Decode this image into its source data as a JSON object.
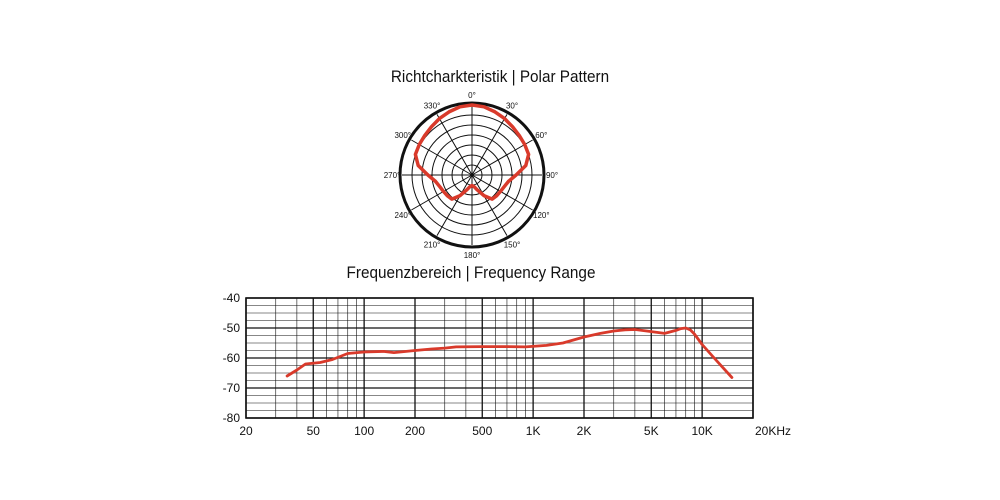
{
  "chart_data": [
    {
      "type": "polar",
      "title": "Richtcharkteristik | Polar Pattern",
      "angle_labels": [
        "0°",
        "30°",
        "60°",
        "90°",
        "120°",
        "150°",
        "180°",
        "210°",
        "240°",
        "270°",
        "300°",
        "330°"
      ],
      "rings": 7,
      "series": [
        {
          "color": "#d93a2b",
          "angles_deg": [
            0,
            10,
            20,
            30,
            40,
            50,
            60,
            70,
            80,
            90,
            100,
            110,
            120,
            130,
            140,
            150,
            160,
            170,
            180,
            190,
            200,
            210,
            220,
            230,
            240,
            250,
            260,
            270,
            280,
            290,
            300,
            310,
            320,
            330,
            340,
            350
          ],
          "radius": [
            1.0,
            0.99,
            0.96,
            0.93,
            0.9,
            0.88,
            0.87,
            0.86,
            0.78,
            0.63,
            0.53,
            0.49,
            0.47,
            0.46,
            0.45,
            0.34,
            0.23,
            0.17,
            0.15,
            0.17,
            0.23,
            0.34,
            0.45,
            0.46,
            0.47,
            0.49,
            0.53,
            0.63,
            0.78,
            0.86,
            0.87,
            0.88,
            0.9,
            0.93,
            0.96,
            0.99
          ]
        }
      ]
    },
    {
      "type": "line",
      "title": "Frequenzbereich | Frequency Range",
      "xscale": "log",
      "xlim": [
        20,
        20000
      ],
      "ylim": [
        -80,
        -40
      ],
      "xticks": [
        {
          "value": 20,
          "label": "20"
        },
        {
          "value": 50,
          "label": "50"
        },
        {
          "value": 100,
          "label": "100"
        },
        {
          "value": 200,
          "label": "200"
        },
        {
          "value": 500,
          "label": "500"
        },
        {
          "value": 1000,
          "label": "1K"
        },
        {
          "value": 2000,
          "label": "2K"
        },
        {
          "value": 5000,
          "label": "5K"
        },
        {
          "value": 10000,
          "label": "10K"
        },
        {
          "value": 20000,
          "label": "20KHz"
        }
      ],
      "yticks": [
        {
          "value": -40,
          "label": "-40"
        },
        {
          "value": -50,
          "label": "-50"
        },
        {
          "value": -60,
          "label": "-60"
        },
        {
          "value": -70,
          "label": "-70"
        },
        {
          "value": -80,
          "label": "-80"
        }
      ],
      "grid": true,
      "series": [
        {
          "color": "#d93a2b",
          "x": [
            35,
            40,
            45,
            55,
            65,
            80,
            100,
            130,
            150,
            200,
            250,
            300,
            350,
            500,
            700,
            900,
            1200,
            1500,
            2000,
            2500,
            3000,
            3500,
            4000,
            5000,
            6000,
            7000,
            7500,
            8000,
            8500,
            9000,
            10000,
            12000,
            15000
          ],
          "y": [
            -66,
            -64,
            -62,
            -61.5,
            -60.5,
            -58.5,
            -58,
            -57.8,
            -58.2,
            -57.5,
            -57,
            -56.7,
            -56.3,
            -56.2,
            -56.2,
            -56.3,
            -55.8,
            -55,
            -53,
            -51.8,
            -51,
            -50.6,
            -50.5,
            -51.2,
            -51.8,
            -50.8,
            -50.2,
            -50,
            -50.6,
            -52,
            -55.5,
            -60.5,
            -66.5
          ]
        }
      ]
    }
  ]
}
